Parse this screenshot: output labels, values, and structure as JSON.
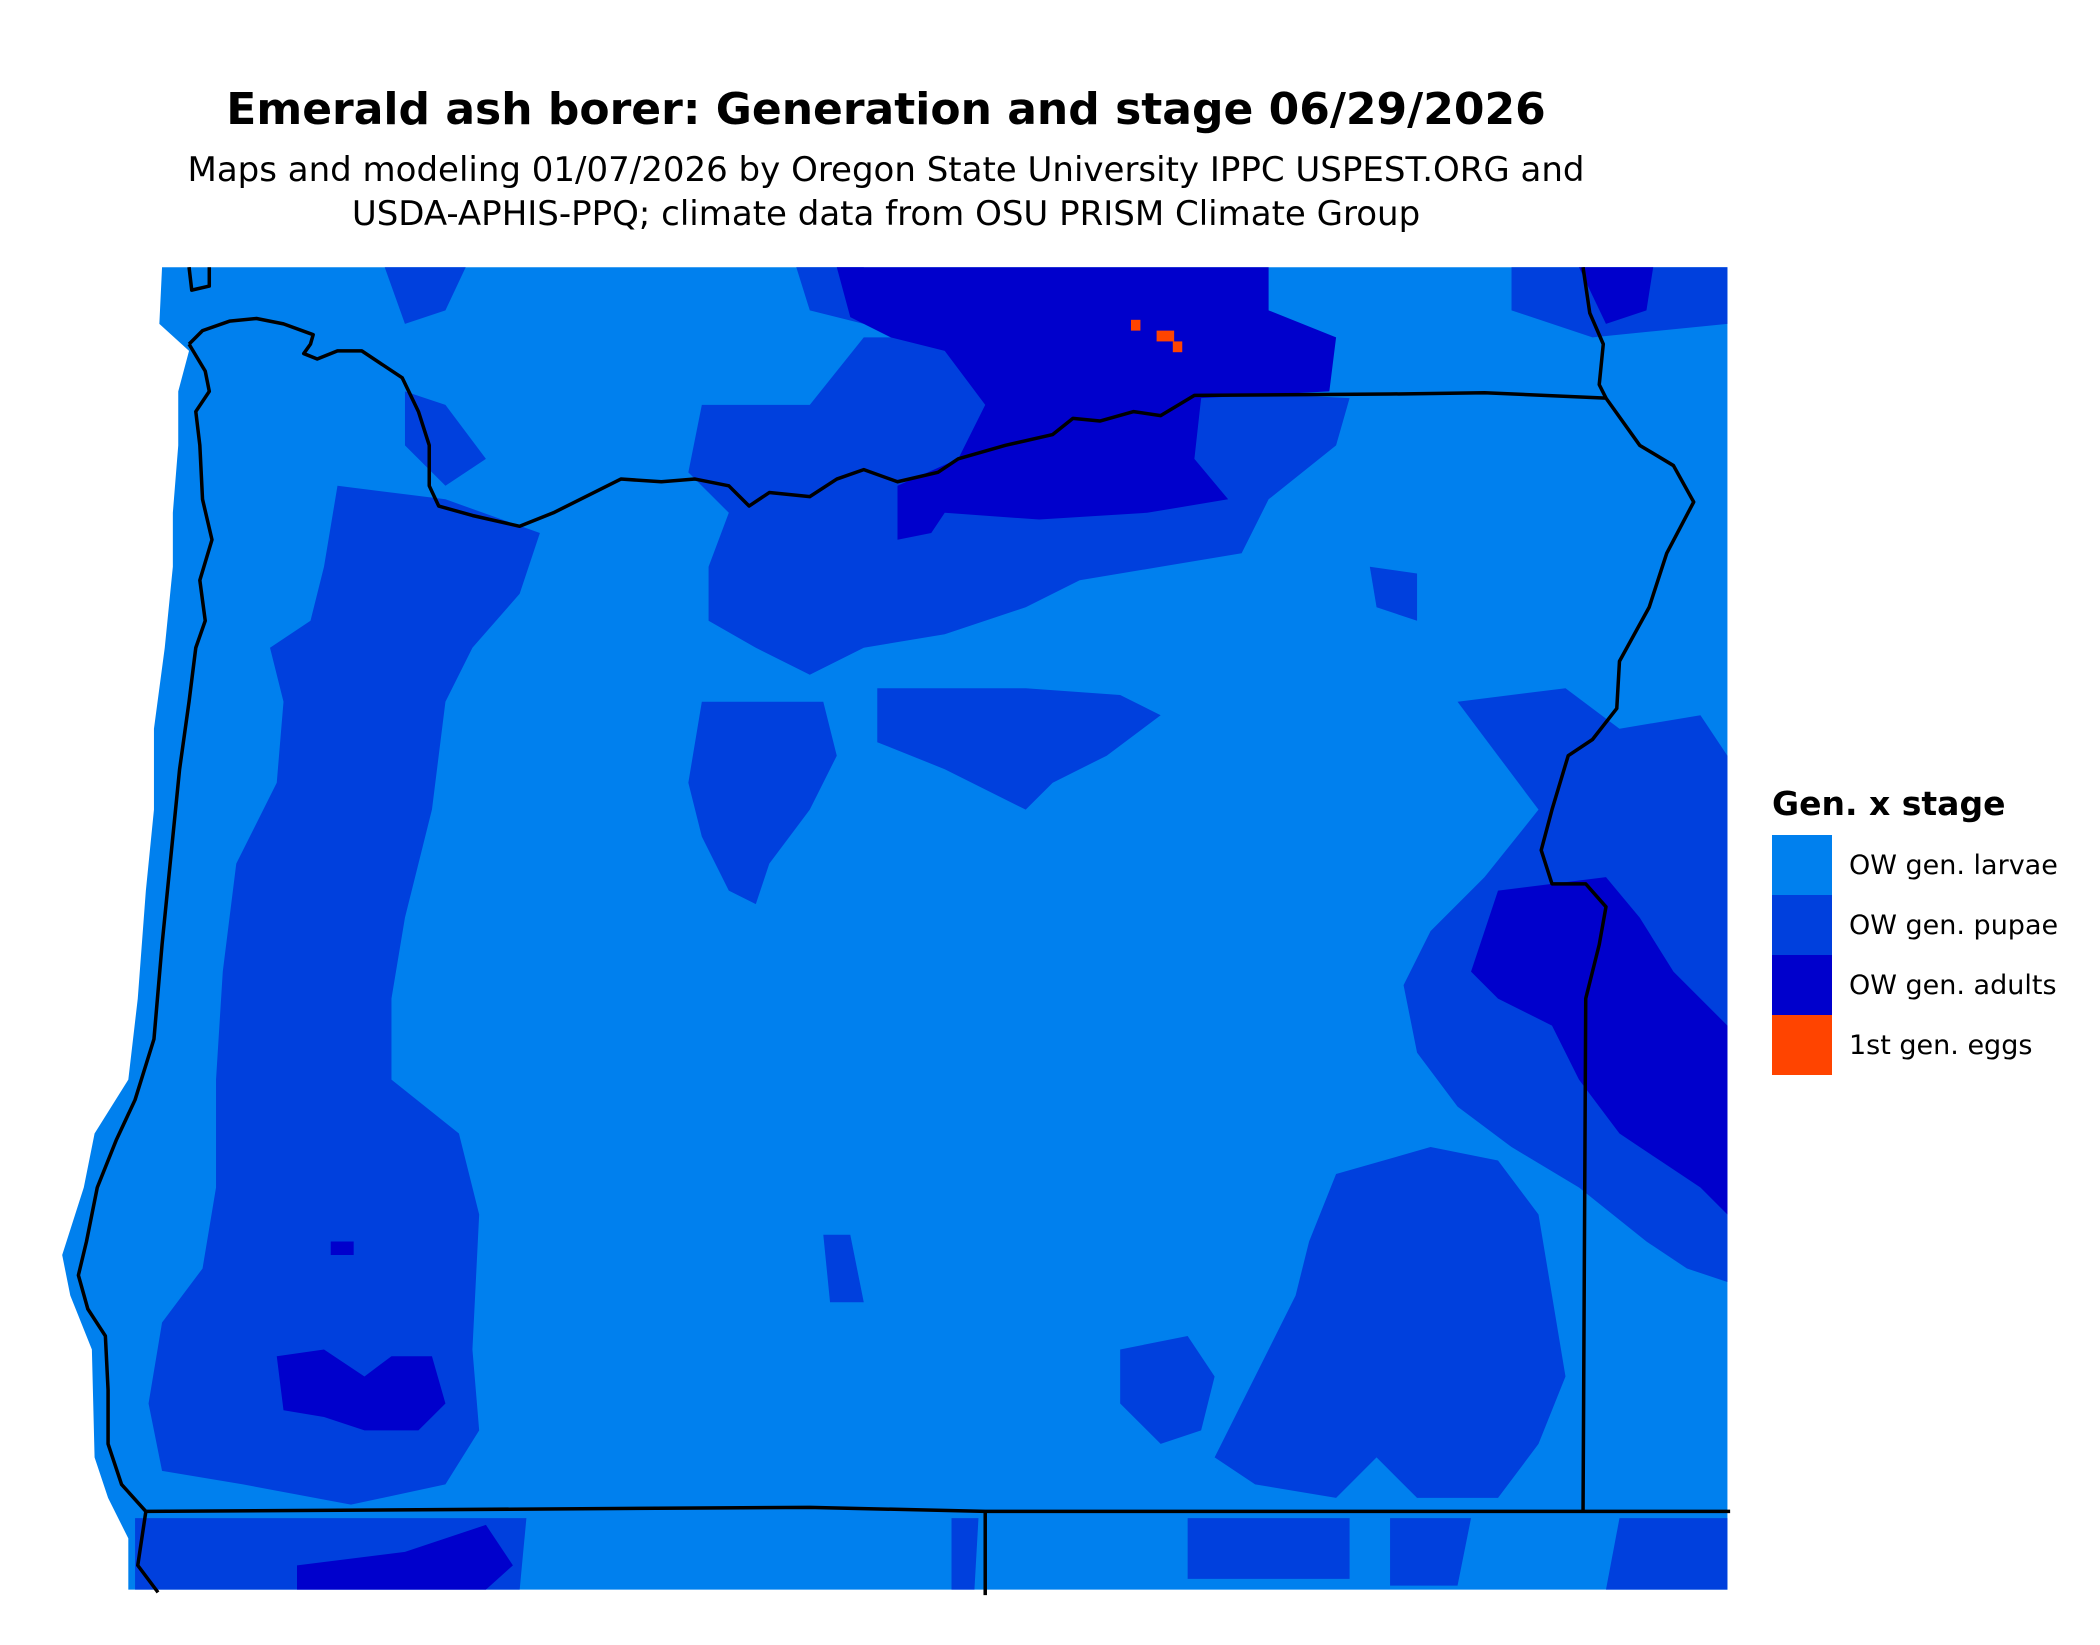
{
  "title": "Emerald ash borer: Generation and stage 06/29/2026",
  "subtitle_lines": [
    "Maps and modeling 01/07/2026 by Oregon State University IPPC USPEST.ORG and",
    "USDA-APHIS-PPQ; climate data from OSU PRISM Climate Group"
  ],
  "legend": {
    "title": "Gen. x stage",
    "items": [
      {
        "label": "OW gen. larvae",
        "color": "#0080EE"
      },
      {
        "label": "OW gen. pupae",
        "color": "#0040DD"
      },
      {
        "label": "OW gen. adults",
        "color": "#0000CC"
      },
      {
        "label": "1st gen. eggs",
        "color": "#FF4400"
      }
    ]
  },
  "border_color": "#000000"
}
